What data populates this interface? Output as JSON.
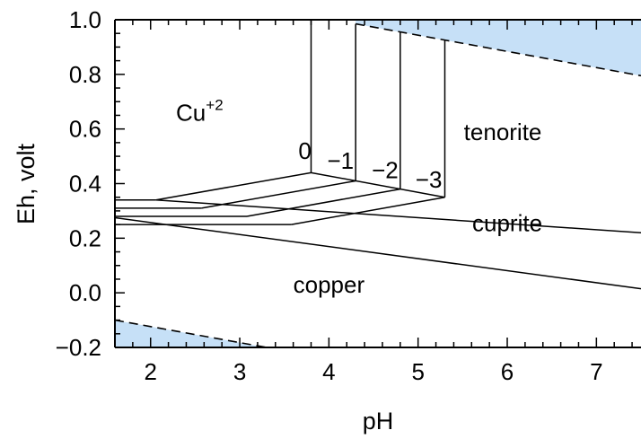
{
  "chart_data": {
    "type": "diagram",
    "xlabel": "pH",
    "ylabel": "Eh, volt",
    "xlim": [
      1.6,
      7.5
    ],
    "ylim": [
      -0.2,
      1.0
    ],
    "x_ticks": [
      2,
      3,
      4,
      5,
      6,
      7
    ],
    "y_ticks": [
      -0.2,
      0.0,
      0.2,
      0.4,
      0.6,
      0.8,
      1.0
    ],
    "x_tick_labels": [
      "2",
      "3",
      "4",
      "5",
      "6",
      "7"
    ],
    "y_tick_labels": [
      "−0.2",
      "0.0",
      "0.2",
      "0.4",
      "0.6",
      "0.8",
      "1.0"
    ],
    "shaded_color": "#c6e0f7",
    "regions": [
      {
        "name": "Cu",
        "superscript": "+2",
        "x": 2.55,
        "y": 0.63
      },
      {
        "name": "tenorite",
        "x": 5.95,
        "y": 0.56
      },
      {
        "name": "cuprite",
        "x": 6.0,
        "y": 0.225
      },
      {
        "name": "copper",
        "x": 4.0,
        "y": 0.0
      }
    ],
    "log_activity_labels": [
      {
        "text": "0",
        "x": 3.73,
        "y": 0.49
      },
      {
        "text": "−1",
        "x": 4.13,
        "y": 0.455
      },
      {
        "text": "−2",
        "x": 4.63,
        "y": 0.42
      },
      {
        "text": "−3",
        "x": 5.12,
        "y": 0.385
      }
    ],
    "lines": [
      {
        "points": [
          [
            3.8,
            1.0
          ],
          [
            3.8,
            0.44
          ]
        ],
        "style": "solid"
      },
      {
        "points": [
          [
            4.3,
            0.985
          ],
          [
            4.3,
            0.41
          ]
        ],
        "style": "solid"
      },
      {
        "points": [
          [
            4.8,
            0.955
          ],
          [
            4.8,
            0.38
          ]
        ],
        "style": "solid"
      },
      {
        "points": [
          [
            5.3,
            0.925
          ],
          [
            5.3,
            0.35
          ]
        ],
        "style": "solid"
      },
      {
        "points": [
          [
            3.8,
            0.44
          ],
          [
            5.3,
            0.35
          ]
        ],
        "style": "solid"
      },
      {
        "points": [
          [
            2.06,
            0.34
          ],
          [
            3.8,
            0.44
          ]
        ],
        "style": "solid"
      },
      {
        "points": [
          [
            2.57,
            0.31
          ],
          [
            4.3,
            0.41
          ]
        ],
        "style": "solid"
      },
      {
        "points": [
          [
            3.08,
            0.28
          ],
          [
            4.8,
            0.38
          ]
        ],
        "style": "solid"
      },
      {
        "points": [
          [
            3.58,
            0.25
          ],
          [
            5.3,
            0.35
          ]
        ],
        "style": "solid"
      },
      {
        "points": [
          [
            1.6,
            0.34
          ],
          [
            2.06,
            0.34
          ]
        ],
        "style": "solid"
      },
      {
        "points": [
          [
            1.6,
            0.31
          ],
          [
            2.57,
            0.31
          ]
        ],
        "style": "solid"
      },
      {
        "points": [
          [
            1.6,
            0.28
          ],
          [
            3.08,
            0.28
          ]
        ],
        "style": "solid"
      },
      {
        "points": [
          [
            1.6,
            0.25
          ],
          [
            3.58,
            0.25
          ]
        ],
        "style": "solid"
      },
      {
        "points": [
          [
            2.06,
            0.34
          ],
          [
            7.5,
            0.22
          ]
        ],
        "style": "solid"
      },
      {
        "points": [
          [
            1.6,
            0.275
          ],
          [
            7.5,
            0.015
          ]
        ],
        "style": "solid"
      },
      {
        "points": [
          [
            4.3,
            0.985
          ],
          [
            7.5,
            0.795
          ]
        ],
        "style": "dashed"
      },
      {
        "points": [
          [
            1.6,
            -0.1
          ],
          [
            3.3,
            -0.2
          ]
        ],
        "style": "dashed"
      }
    ],
    "shaded_regions": [
      {
        "points": [
          [
            4.3,
            0.985
          ],
          [
            4.3,
            1.0
          ],
          [
            7.5,
            1.0
          ],
          [
            7.5,
            0.795
          ]
        ]
      },
      {
        "points": [
          [
            1.6,
            -0.1
          ],
          [
            3.3,
            -0.2
          ],
          [
            1.6,
            -0.2
          ]
        ]
      }
    ]
  }
}
